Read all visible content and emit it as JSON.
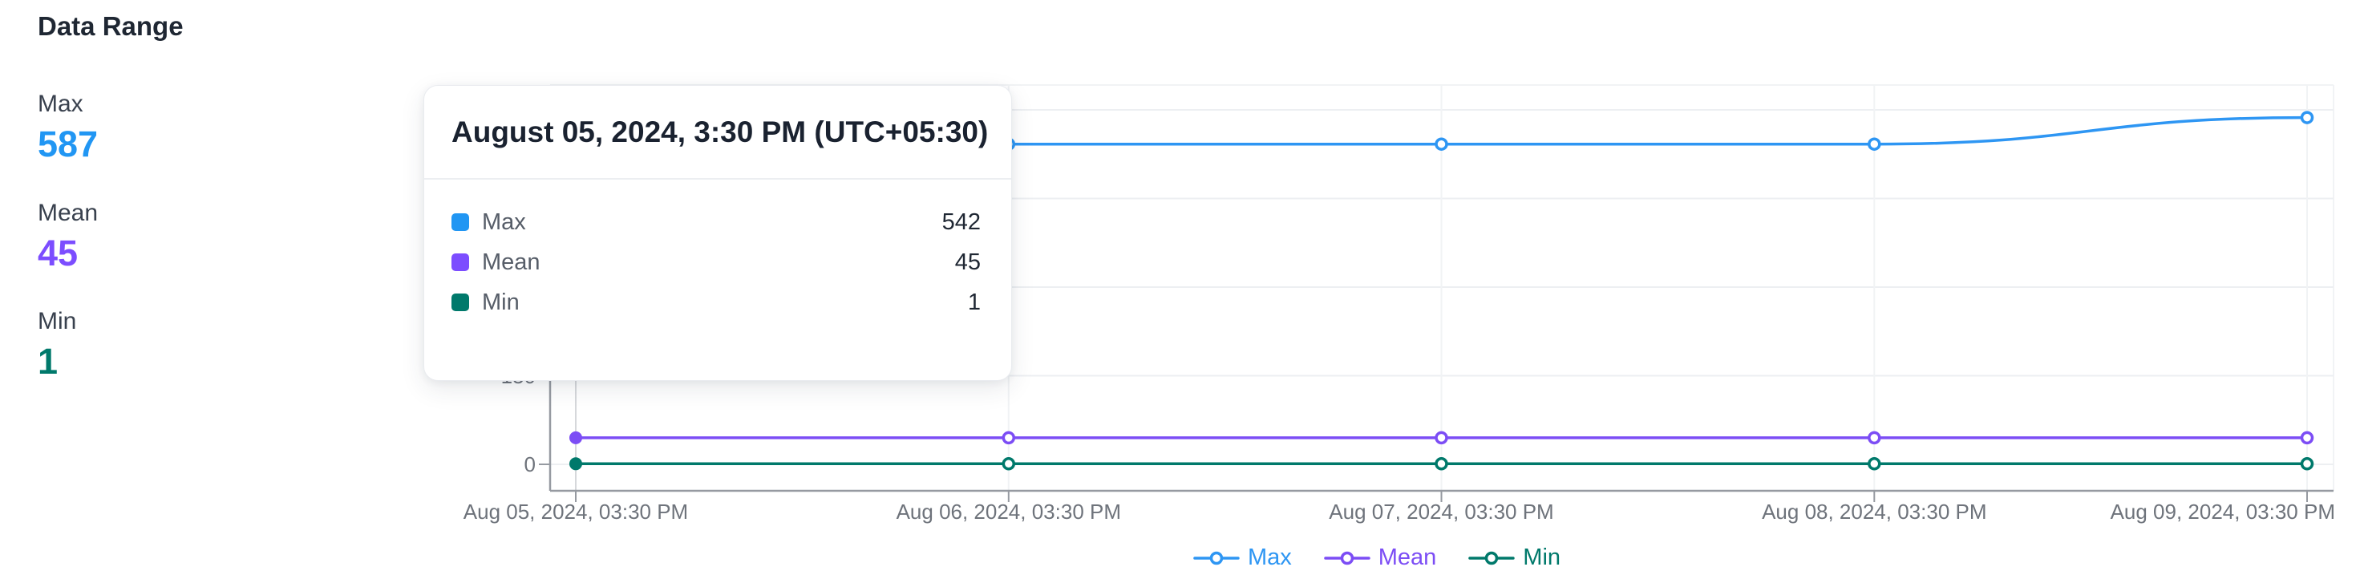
{
  "panel": {
    "title": "Data Range",
    "stats": [
      {
        "id": "max",
        "label": "Max",
        "value": "587",
        "color": "#2196f3"
      },
      {
        "id": "mean",
        "label": "Mean",
        "value": "45",
        "color": "#7c4dff"
      },
      {
        "id": "min",
        "label": "Min",
        "value": "1",
        "color": "#00796b"
      }
    ]
  },
  "tooltip": {
    "title": "August 05, 2024, 3:30 PM (UTC+05:30)",
    "rows": [
      {
        "label": "Max",
        "value": "542",
        "color": "#2196f3"
      },
      {
        "label": "Mean",
        "value": "45",
        "color": "#7c4dff"
      },
      {
        "label": "Min",
        "value": "1",
        "color": "#00796b"
      }
    ]
  },
  "chart_data": {
    "type": "line",
    "x": [
      "Aug 05, 2024, 03:30 PM",
      "Aug 06, 2024, 03:30 PM",
      "Aug 07, 2024, 03:30 PM",
      "Aug 08, 2024, 03:30 PM",
      "Aug 09, 2024, 03:30 PM"
    ],
    "series": [
      {
        "name": "Max",
        "color": "#2e96f3",
        "values": [
          542,
          542,
          542,
          542,
          587
        ]
      },
      {
        "name": "Mean",
        "color": "#7c4df5",
        "values": [
          45,
          45,
          45,
          45,
          45
        ]
      },
      {
        "name": "Min",
        "color": "#00796b",
        "values": [
          1,
          1,
          1,
          1,
          1
        ]
      }
    ],
    "ylim": [
      0,
      600
    ],
    "yticks": [
      0,
      150,
      300,
      450,
      600
    ],
    "visible_y_tick_label": "0",
    "grid": true,
    "smooth": true,
    "legend_position": "bottom",
    "hover_index": 0,
    "hover_label": "August 05, 2024, 3:30 PM (UTC+05:30)"
  }
}
